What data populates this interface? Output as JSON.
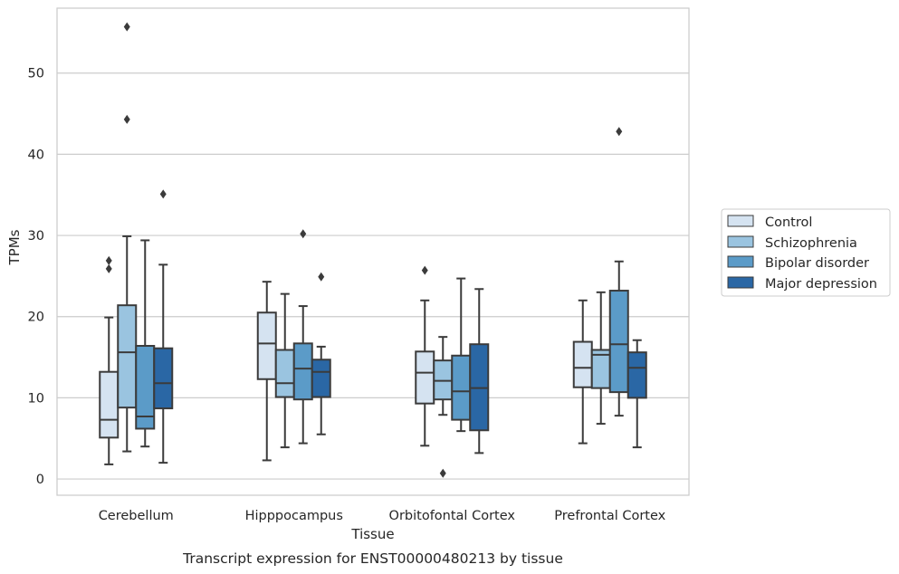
{
  "chart_data": {
    "type": "box",
    "title": "",
    "caption": "Transcript expression for ENST00000480213 by tissue",
    "xlabel": "Tissue",
    "ylabel": "TPMs",
    "ylim": [
      -2,
      58
    ],
    "yticks": [
      0,
      10,
      20,
      30,
      40,
      50
    ],
    "grid": "horizontal",
    "legend_position": "right",
    "categories": [
      "Cerebellum",
      "Hipppocampus",
      "Orbitofontal Cortex",
      "Prefrontal Cortex"
    ],
    "series": [
      {
        "name": "Control",
        "color": "#d5e3f1",
        "boxes": [
          {
            "whisker_low": 1.8,
            "q1": 5.1,
            "median": 7.3,
            "q3": 13.2,
            "whisker_high": 19.9,
            "outliers": [
              25.9,
              26.9
            ]
          },
          {
            "whisker_low": 2.3,
            "q1": 12.3,
            "median": 16.7,
            "q3": 20.5,
            "whisker_high": 24.3,
            "outliers": []
          },
          {
            "whisker_low": 4.1,
            "q1": 9.3,
            "median": 13.1,
            "q3": 15.7,
            "whisker_high": 22.0,
            "outliers": [
              25.7
            ]
          },
          {
            "whisker_low": 4.4,
            "q1": 11.3,
            "median": 13.7,
            "q3": 16.9,
            "whisker_high": 22.0,
            "outliers": []
          }
        ]
      },
      {
        "name": "Schizophrenia",
        "color": "#9ac4e0",
        "boxes": [
          {
            "whisker_low": 3.4,
            "q1": 8.8,
            "median": 15.6,
            "q3": 21.4,
            "whisker_high": 29.9,
            "outliers": [
              44.3,
              55.7
            ]
          },
          {
            "whisker_low": 3.9,
            "q1": 10.1,
            "median": 11.8,
            "q3": 15.9,
            "whisker_high": 22.8,
            "outliers": []
          },
          {
            "whisker_low": 7.9,
            "q1": 9.8,
            "median": 12.1,
            "q3": 14.6,
            "whisker_high": 17.5,
            "outliers": [
              0.7
            ]
          },
          {
            "whisker_low": 6.8,
            "q1": 11.2,
            "median": 15.3,
            "q3": 15.9,
            "whisker_high": 23.0,
            "outliers": []
          }
        ]
      },
      {
        "name": "Bipolar disorder",
        "color": "#5b9bc8",
        "boxes": [
          {
            "whisker_low": 4.0,
            "q1": 6.2,
            "median": 7.7,
            "q3": 16.4,
            "whisker_high": 29.4,
            "outliers": []
          },
          {
            "whisker_low": 4.4,
            "q1": 9.8,
            "median": 13.6,
            "q3": 16.7,
            "whisker_high": 21.3,
            "outliers": [
              30.2
            ]
          },
          {
            "whisker_low": 5.9,
            "q1": 7.3,
            "median": 10.8,
            "q3": 15.2,
            "whisker_high": 24.7,
            "outliers": []
          },
          {
            "whisker_low": 7.8,
            "q1": 10.7,
            "median": 16.6,
            "q3": 23.2,
            "whisker_high": 26.8,
            "outliers": [
              42.8
            ]
          }
        ]
      },
      {
        "name": "Major depression",
        "color": "#2a67a5",
        "boxes": [
          {
            "whisker_low": 2.0,
            "q1": 8.7,
            "median": 11.8,
            "q3": 16.1,
            "whisker_high": 26.4,
            "outliers": [
              35.1
            ]
          },
          {
            "whisker_low": 5.5,
            "q1": 10.1,
            "median": 13.2,
            "q3": 14.7,
            "whisker_high": 16.3,
            "outliers": [
              24.9
            ]
          },
          {
            "whisker_low": 3.2,
            "q1": 6.0,
            "median": 11.2,
            "q3": 16.6,
            "whisker_high": 23.4,
            "outliers": []
          },
          {
            "whisker_low": 3.9,
            "q1": 10.0,
            "median": 13.7,
            "q3": 15.6,
            "whisker_high": 17.1,
            "outliers": []
          }
        ]
      }
    ],
    "colors": {
      "grid": "#cccccc",
      "frame": "#cccccc",
      "box_edge": "#3b3b3b",
      "outlier": "#3b3b3b"
    }
  }
}
